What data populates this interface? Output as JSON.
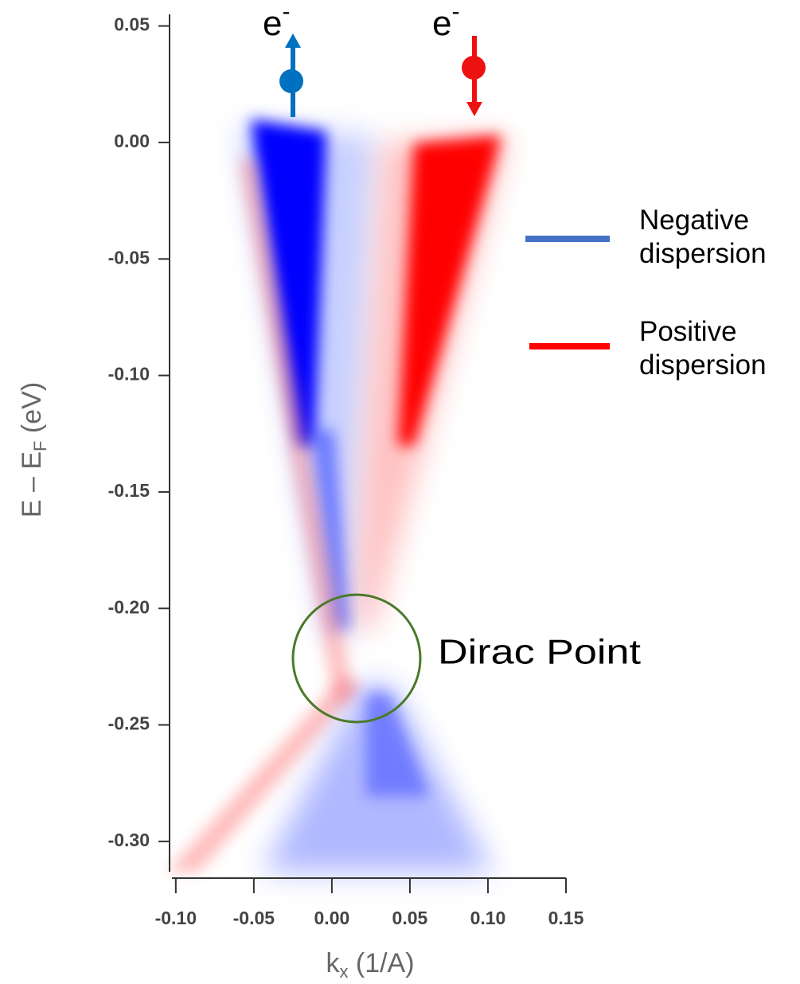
{
  "chart_data": {
    "type": "heatmap",
    "xlabel": [
      "k",
      "x",
      " (1/A)"
    ],
    "ylabel": [
      "E – E",
      "F",
      " (eV)"
    ],
    "xlim": [
      -0.104,
      0.15
    ],
    "ylim": [
      -0.312,
      0.055
    ],
    "xticks": [
      {
        "value": -0.1,
        "label": "-0.10"
      },
      {
        "value": -0.05,
        "label": "-0.05"
      },
      {
        "value": 0,
        "label": "0.00"
      },
      {
        "value": 0.05,
        "label": "0.05"
      },
      {
        "value": 0.1,
        "label": "0.10"
      },
      {
        "value": 0.15,
        "label": "0.15"
      }
    ],
    "yticks": [
      {
        "value": 0.05,
        "label": "0.05"
      },
      {
        "value": 0,
        "label": "0.00"
      },
      {
        "value": -0.05,
        "label": "-0.05"
      },
      {
        "value": -0.1,
        "label": "-0.10"
      },
      {
        "value": -0.15,
        "label": "-0.15"
      },
      {
        "value": -0.2,
        "label": "-0.20"
      },
      {
        "value": -0.25,
        "label": "-0.25"
      },
      {
        "value": -0.3,
        "label": "-0.30"
      }
    ],
    "annotations": [
      [
        "e",
        "-"
      ],
      [
        "e",
        "-"
      ],
      "Dirac Point"
    ],
    "series": [
      {
        "name": "Negative dispersion",
        "color": "#4472c4"
      },
      {
        "name": "Positive dispersion",
        "color": "#ff0000"
      }
    ]
  }
}
